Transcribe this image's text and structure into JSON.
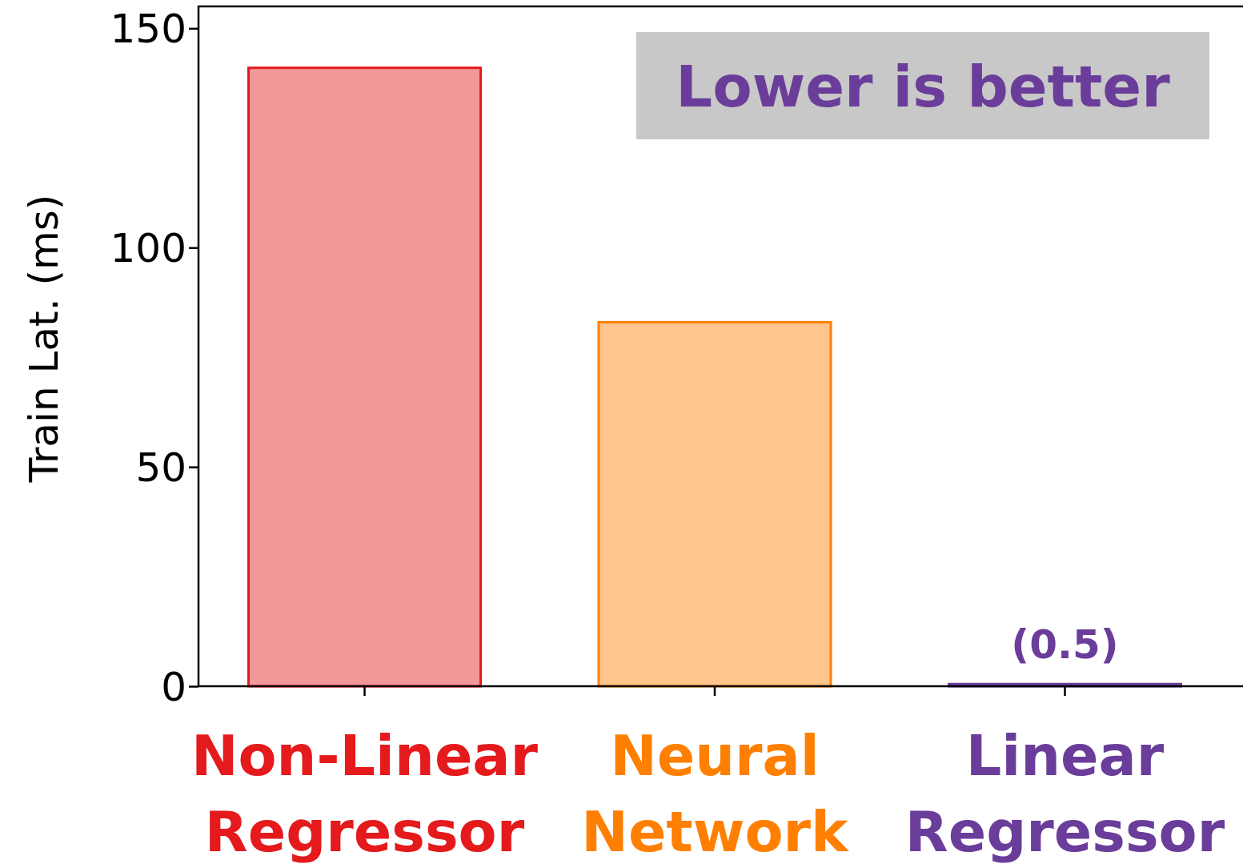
{
  "chart_data": {
    "type": "bar",
    "ylabel": "Train Lat. (ms)",
    "categories": [
      "Non-Linear Regressor",
      "Neural Network",
      "Linear Regressor"
    ],
    "values": [
      141,
      83,
      0.5
    ],
    "colors": [
      "#e41a1c",
      "#ff7f00",
      "#6a3d9a"
    ],
    "value_labels": [
      null,
      null,
      "(0.5)"
    ],
    "ylim": [
      0,
      155
    ],
    "yticks": [
      0,
      50,
      100,
      150
    ],
    "grid": false,
    "annotations": [
      "Lower is better"
    ]
  }
}
